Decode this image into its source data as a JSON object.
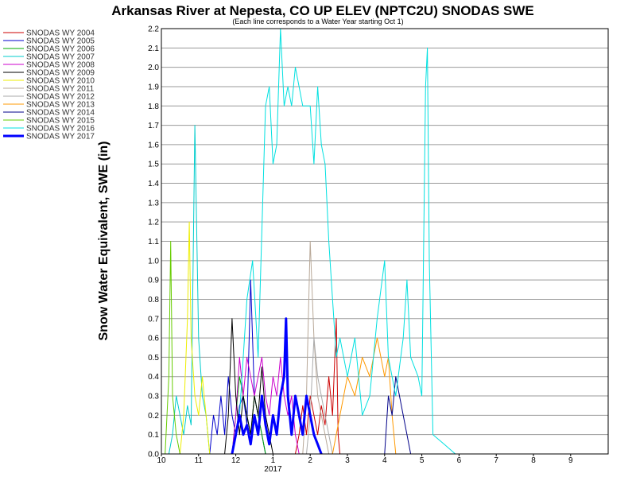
{
  "chart_data": {
    "type": "line",
    "title": "Arkansas River at Nepesta, CO UP ELEV (NPTC2U) SNODAS SWE",
    "subtitle": "(Each line corresponds to a Water Year starting Oct 1)",
    "ylabel": "Snow Water Equivalent, SWE (in)",
    "xlabel": "",
    "x_tick_labels": [
      "10",
      "11",
      "12",
      "1",
      "2",
      "3",
      "4",
      "5",
      "6",
      "7",
      "8",
      "9"
    ],
    "year_label": "2017",
    "y_ticks": [
      "0.0",
      "0.1",
      "0.2",
      "0.3",
      "0.4",
      "0.5",
      "0.6",
      "0.7",
      "0.8",
      "0.9",
      "1.0",
      "1.1",
      "1.2",
      "1.3",
      "1.4",
      "1.5",
      "1.6",
      "1.7",
      "1.8",
      "1.9",
      "2.0",
      "2.1",
      "2.2"
    ],
    "xlim": [
      "10-01",
      "09-30"
    ],
    "ylim": [
      0,
      2.2
    ],
    "grid": "horizontal",
    "legend_position": "left",
    "series": [
      {
        "name": "SNODAS WY 2004",
        "color": "#cc0000",
        "width": 1,
        "points": [
          [
            3.6,
            0
          ],
          [
            3.7,
            0.1
          ],
          [
            3.8,
            0.25
          ],
          [
            3.9,
            0.1
          ],
          [
            4.0,
            0.3
          ],
          [
            4.1,
            0.2
          ],
          [
            4.2,
            0.1
          ],
          [
            4.3,
            0.25
          ],
          [
            4.4,
            0.15
          ],
          [
            4.5,
            0.4
          ],
          [
            4.6,
            0.2
          ],
          [
            4.7,
            0.7
          ],
          [
            4.75,
            0.1
          ],
          [
            4.8,
            0
          ]
        ]
      },
      {
        "name": "SNODAS WY 2005",
        "color": "#0000cc",
        "width": 1,
        "points": [
          [
            1.3,
            0
          ],
          [
            1.4,
            0.2
          ],
          [
            1.5,
            0.1
          ],
          [
            1.6,
            0.3
          ],
          [
            1.7,
            0.1
          ],
          [
            1.8,
            0.4
          ],
          [
            1.9,
            0.2
          ],
          [
            2.0,
            0.1
          ],
          [
            2.1,
            0.25
          ],
          [
            2.2,
            0.3
          ],
          [
            2.3,
            0.15
          ],
          [
            2.4,
            0.9
          ],
          [
            2.5,
            0.3
          ],
          [
            2.6,
            0.2
          ],
          [
            2.7,
            0.1
          ],
          [
            2.8,
            0
          ]
        ]
      },
      {
        "name": "SNODAS WY 2006",
        "color": "#00aa00",
        "width": 1,
        "points": [
          [
            1.9,
            0
          ],
          [
            2.0,
            0.2
          ],
          [
            2.1,
            0.4
          ],
          [
            2.2,
            0.3
          ],
          [
            2.3,
            0.2
          ],
          [
            2.4,
            0.1
          ],
          [
            2.5,
            0.3
          ],
          [
            2.6,
            0.2
          ],
          [
            2.7,
            0.1
          ],
          [
            2.8,
            0
          ]
        ]
      },
      {
        "name": "SNODAS WY 2007",
        "color": "#00cccc",
        "width": 1,
        "points": [
          [
            0.2,
            0
          ],
          [
            0.3,
            0.1
          ],
          [
            0.4,
            0.3
          ],
          [
            0.5,
            0.2
          ],
          [
            0.6,
            0.1
          ],
          [
            0.7,
            0.25
          ],
          [
            0.8,
            0.15
          ],
          [
            0.9,
            1.7
          ],
          [
            1.0,
            0.6
          ],
          [
            1.1,
            0.3
          ],
          [
            1.2,
            0.2
          ],
          [
            1.3,
            0
          ]
        ]
      },
      {
        "name": "SNODAS WY 2008",
        "color": "#cc00cc",
        "width": 1,
        "points": [
          [
            1.9,
            0
          ],
          [
            2.0,
            0.2
          ],
          [
            2.1,
            0.5
          ],
          [
            2.2,
            0.3
          ],
          [
            2.3,
            0.5
          ],
          [
            2.4,
            0.4
          ],
          [
            2.5,
            0.3
          ],
          [
            2.6,
            0.4
          ],
          [
            2.7,
            0.5
          ],
          [
            2.8,
            0.3
          ],
          [
            2.9,
            0.2
          ],
          [
            3.0,
            0.4
          ],
          [
            3.1,
            0.3
          ],
          [
            3.2,
            0.5
          ],
          [
            3.3,
            0.3
          ],
          [
            3.4,
            0.2
          ],
          [
            3.5,
            0.3
          ],
          [
            3.6,
            0.1
          ],
          [
            3.7,
            0
          ]
        ]
      },
      {
        "name": "SNODAS WY 2009",
        "color": "#000000",
        "width": 1,
        "points": [
          [
            1.7,
            0
          ],
          [
            1.8,
            0.2
          ],
          [
            1.9,
            0.7
          ],
          [
            2.0,
            0.3
          ],
          [
            2.1,
            0.1
          ],
          [
            2.2,
            0.3
          ],
          [
            2.3,
            0.2
          ],
          [
            2.4,
            0.1
          ],
          [
            2.5,
            0.3
          ],
          [
            2.6,
            0.2
          ],
          [
            2.7,
            0.45
          ],
          [
            2.8,
            0.2
          ],
          [
            2.9,
            0.1
          ],
          [
            3.0,
            0
          ]
        ]
      },
      {
        "name": "SNODAS WY 2010",
        "color": "#eeee00",
        "width": 1,
        "points": [
          [
            0.5,
            0
          ],
          [
            0.6,
            0.2
          ],
          [
            0.7,
            0.7
          ],
          [
            0.75,
            1.2
          ],
          [
            0.8,
            0.6
          ],
          [
            0.9,
            0.3
          ],
          [
            1.0,
            0.2
          ],
          [
            1.1,
            0.4
          ],
          [
            1.2,
            0.2
          ],
          [
            1.3,
            0
          ]
        ]
      },
      {
        "name": "SNODAS WY 2011",
        "color": "#b8a898",
        "width": 1,
        "points": [
          [
            3.8,
            0
          ],
          [
            3.9,
            0.3
          ],
          [
            4.0,
            1.1
          ],
          [
            4.1,
            0.6
          ],
          [
            4.2,
            0.3
          ],
          [
            4.3,
            0.2
          ],
          [
            4.4,
            0.1
          ],
          [
            4.5,
            0
          ]
        ]
      },
      {
        "name": "SNODAS WY 2012",
        "color": "#aaaaaa",
        "width": 1,
        "points": [
          [
            3.9,
            0
          ],
          [
            4.0,
            0.2
          ],
          [
            4.1,
            0.6
          ],
          [
            4.2,
            0.4
          ],
          [
            4.3,
            0.3
          ],
          [
            4.4,
            0.2
          ],
          [
            4.5,
            0.1
          ],
          [
            4.6,
            0
          ]
        ]
      },
      {
        "name": "SNODAS WY 2013",
        "color": "#ff9900",
        "width": 1,
        "points": [
          [
            4.6,
            0
          ],
          [
            4.8,
            0.2
          ],
          [
            5.0,
            0.4
          ],
          [
            5.2,
            0.3
          ],
          [
            5.4,
            0.5
          ],
          [
            5.6,
            0.4
          ],
          [
            5.8,
            0.6
          ],
          [
            6.0,
            0.4
          ],
          [
            6.1,
            0.5
          ],
          [
            6.2,
            0.2
          ],
          [
            6.3,
            0
          ]
        ]
      },
      {
        "name": "SNODAS WY 2014",
        "color": "#000088",
        "width": 1,
        "points": [
          [
            6.0,
            0
          ],
          [
            6.1,
            0.3
          ],
          [
            6.2,
            0.2
          ],
          [
            6.3,
            0.4
          ],
          [
            6.4,
            0.3
          ],
          [
            6.5,
            0.2
          ],
          [
            6.6,
            0.1
          ],
          [
            6.7,
            0
          ]
        ]
      },
      {
        "name": "SNODAS WY 2015",
        "color": "#66cc00",
        "width": 1,
        "points": [
          [
            0.1,
            0
          ],
          [
            0.2,
            0.4
          ],
          [
            0.25,
            1.1
          ],
          [
            0.3,
            0.3
          ],
          [
            0.4,
            0.1
          ],
          [
            0.5,
            0
          ]
        ]
      },
      {
        "name": "SNODAS WY 2016",
        "color": "#00e0e0",
        "width": 1,
        "points": [
          [
            1.9,
            0
          ],
          [
            2.1,
            0.2
          ],
          [
            2.3,
            0.8
          ],
          [
            2.45,
            1.0
          ],
          [
            2.6,
            0.5
          ],
          [
            2.8,
            1.8
          ],
          [
            2.9,
            1.9
          ],
          [
            3.0,
            1.5
          ],
          [
            3.1,
            1.6
          ],
          [
            3.2,
            2.2
          ],
          [
            3.3,
            1.8
          ],
          [
            3.4,
            1.9
          ],
          [
            3.5,
            1.8
          ],
          [
            3.6,
            2.0
          ],
          [
            3.7,
            1.9
          ],
          [
            3.8,
            1.8
          ],
          [
            4.0,
            1.8
          ],
          [
            4.1,
            1.5
          ],
          [
            4.2,
            1.9
          ],
          [
            4.3,
            1.6
          ],
          [
            4.4,
            1.5
          ],
          [
            4.5,
            1.1
          ],
          [
            4.6,
            0.8
          ],
          [
            4.7,
            0.5
          ],
          [
            4.8,
            0.6
          ],
          [
            5.0,
            0.4
          ],
          [
            5.2,
            0.6
          ],
          [
            5.4,
            0.2
          ],
          [
            5.6,
            0.3
          ],
          [
            5.8,
            0.7
          ],
          [
            6.0,
            1.0
          ],
          [
            6.1,
            0.5
          ],
          [
            6.3,
            0.3
          ],
          [
            6.5,
            0.6
          ],
          [
            6.6,
            0.9
          ],
          [
            6.7,
            0.5
          ],
          [
            6.9,
            0.4
          ],
          [
            7.0,
            0.3
          ],
          [
            7.1,
            1.9
          ],
          [
            7.15,
            2.1
          ],
          [
            7.2,
            1.0
          ],
          [
            7.3,
            0.1
          ],
          [
            7.6,
            0.05
          ],
          [
            7.9,
            0
          ]
        ]
      },
      {
        "name": "SNODAS WY 2017",
        "color": "#0000ff",
        "width": 3,
        "points": [
          [
            1.9,
            0
          ],
          [
            2.0,
            0.1
          ],
          [
            2.1,
            0.2
          ],
          [
            2.2,
            0.1
          ],
          [
            2.3,
            0.15
          ],
          [
            2.4,
            0.05
          ],
          [
            2.5,
            0.2
          ],
          [
            2.6,
            0.1
          ],
          [
            2.7,
            0.3
          ],
          [
            2.8,
            0.15
          ],
          [
            2.9,
            0.05
          ],
          [
            3.0,
            0.2
          ],
          [
            3.1,
            0.1
          ],
          [
            3.2,
            0.3
          ],
          [
            3.3,
            0.4
          ],
          [
            3.35,
            0.7
          ],
          [
            3.4,
            0.3
          ],
          [
            3.5,
            0.1
          ],
          [
            3.6,
            0.3
          ],
          [
            3.7,
            0.2
          ],
          [
            3.8,
            0.1
          ],
          [
            3.9,
            0.3
          ],
          [
            4.0,
            0.2
          ],
          [
            4.1,
            0.1
          ],
          [
            4.2,
            0.05
          ],
          [
            4.3,
            0
          ]
        ]
      }
    ]
  }
}
